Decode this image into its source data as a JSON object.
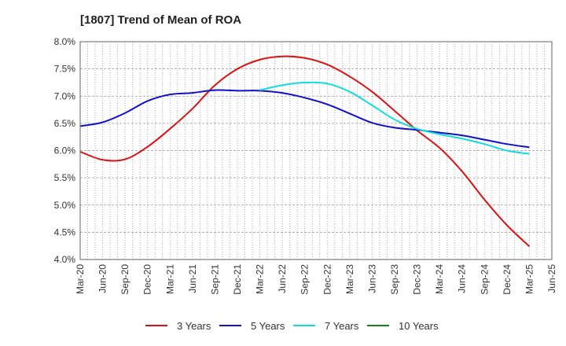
{
  "chart_data": {
    "type": "line",
    "title": "[1807]  Trend of Mean of ROA",
    "xlabel": "",
    "ylabel": "",
    "ylim": [
      4.0,
      8.0
    ],
    "y_ticks": [
      "4.0%",
      "4.5%",
      "5.0%",
      "5.5%",
      "6.0%",
      "6.5%",
      "7.0%",
      "7.5%",
      "8.0%"
    ],
    "y_tick_values": [
      4.0,
      4.5,
      5.0,
      5.5,
      6.0,
      6.5,
      7.0,
      7.5,
      8.0
    ],
    "x_ticks": [
      "Mar-20",
      "Jun-20",
      "Sep-20",
      "Dec-20",
      "Mar-21",
      "Jun-21",
      "Sep-21",
      "Dec-21",
      "Mar-22",
      "Jun-22",
      "Sep-22",
      "Dec-22",
      "Mar-23",
      "Jun-23",
      "Sep-23",
      "Dec-23",
      "Mar-24",
      "Jun-24",
      "Sep-24",
      "Dec-24",
      "Mar-25",
      "Jun-25"
    ],
    "grid": true,
    "legend_position": "bottom",
    "series": [
      {
        "name": "3 Years",
        "color": "#dd1111",
        "start_index": 0,
        "values": [
          5.98,
          5.83,
          5.84,
          6.07,
          6.4,
          6.77,
          7.2,
          7.5,
          7.67,
          7.73,
          7.7,
          7.58,
          7.36,
          7.08,
          6.73,
          6.37,
          6.05,
          5.62,
          5.1,
          4.63,
          4.24
        ]
      },
      {
        "name": "5 Years",
        "color": "#1111cc",
        "start_index": 0,
        "values": [
          6.45,
          6.52,
          6.69,
          6.91,
          7.03,
          7.06,
          7.11,
          7.1,
          7.1,
          7.06,
          6.97,
          6.85,
          6.68,
          6.51,
          6.42,
          6.38,
          6.33,
          6.28,
          6.2,
          6.12,
          6.06
        ]
      },
      {
        "name": "7 Years",
        "color": "#11dddd",
        "start_index": 8,
        "values": [
          7.11,
          7.2,
          7.25,
          7.23,
          7.08,
          6.83,
          6.57,
          6.4,
          6.3,
          6.22,
          6.12,
          6.0,
          5.94
        ]
      },
      {
        "name": "10 Years",
        "color": "#118811",
        "start_index": 0,
        "values": []
      }
    ]
  }
}
